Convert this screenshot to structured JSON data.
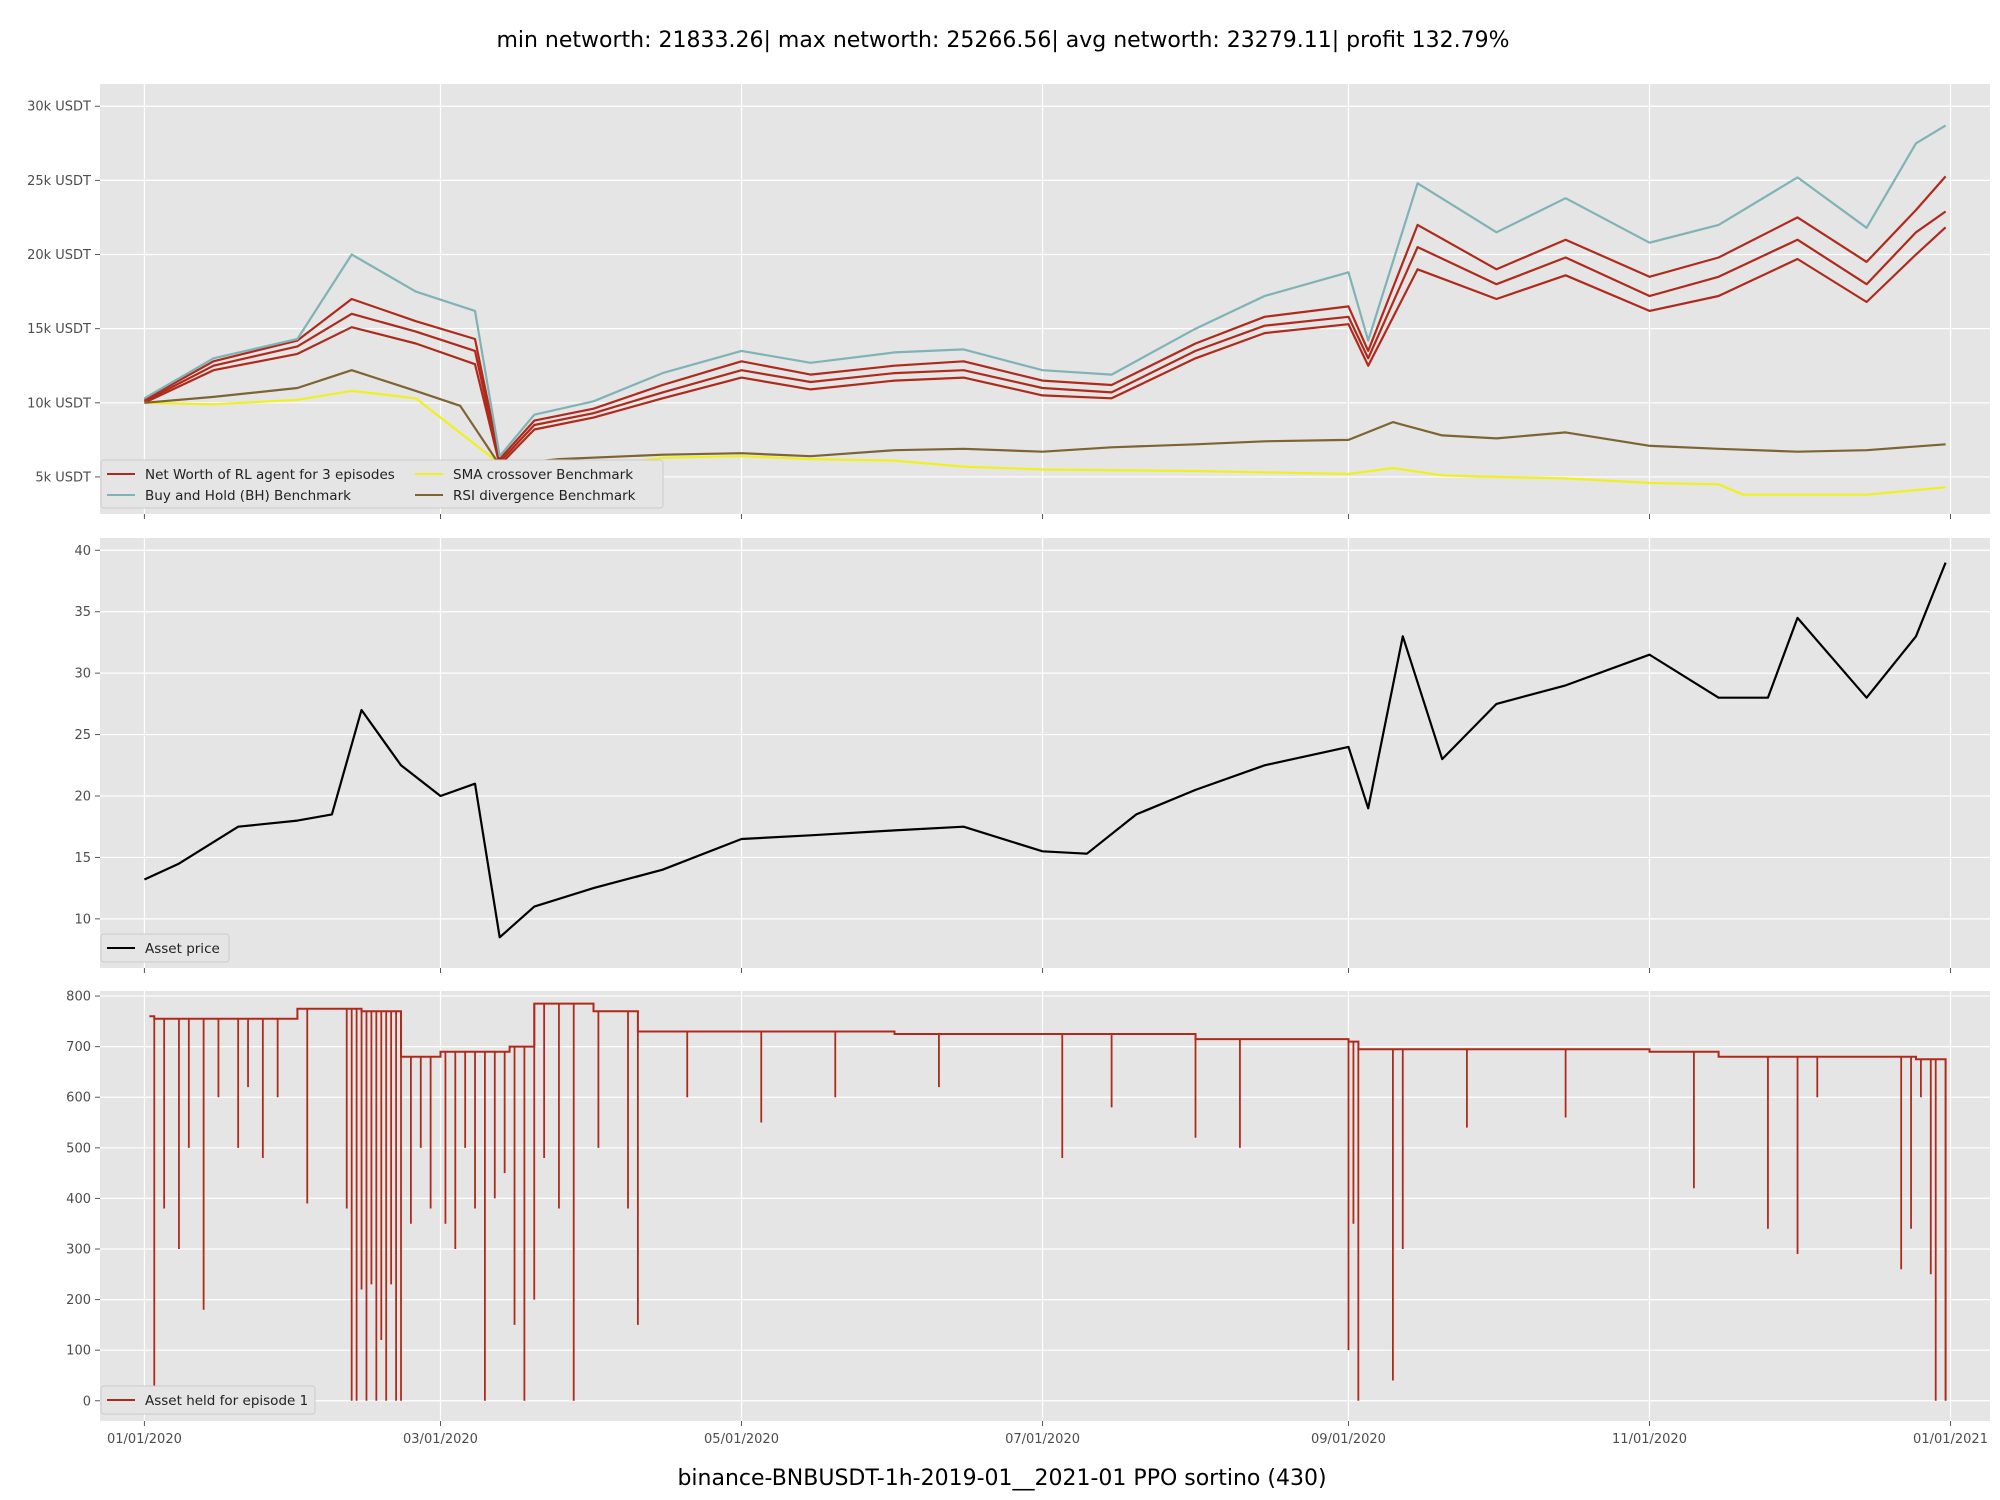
{
  "figure": {
    "suptitle": "min networth: 21833.26| max networth: 25266.56| avg networth: 23279.11| profit 132.79%",
    "xlabel": "binance-BNBUSDT-1h-2019-01__2021-01 PPO sortino  (430)"
  },
  "style": {
    "panel_background": "#e5e5e5",
    "grid_color": "#ffffff",
    "networth_color": "#b02a1c",
    "bh_color": "#7fb3b5",
    "sma_color": "#f0f01e",
    "rsi_color": "#7d6432",
    "price_color": "#000000",
    "held_color": "#b02a1c"
  },
  "chart_data": [
    {
      "type": "line",
      "x_ticks": [
        "01/01/2020",
        "03/01/2020",
        "05/01/2020",
        "07/01/2020",
        "09/01/2020",
        "11/01/2020",
        "01/01/2021"
      ],
      "ylim": [
        2500,
        31500
      ],
      "y_ticks": [
        5000,
        10000,
        15000,
        20000,
        25000,
        30000
      ],
      "y_tick_labels": [
        "5k USDT",
        "10k USDT",
        "15k USDT",
        "20k USDT",
        "25k USDT",
        "30k USDT"
      ],
      "legend": {
        "placement": "lower-left",
        "entries": [
          "Net Worth of RL agent for 3 episodes",
          "SMA crossover Benchmark",
          "Buy and Hold (BH) Benchmark",
          "RSI divergence Benchmark"
        ]
      },
      "series": [
        {
          "name": "Net Worth of RL agent for 3 episodes",
          "color_key": "networth_color",
          "x": [
            "2020-01-01",
            "2020-01-15",
            "2020-02-01",
            "2020-02-12",
            "2020-02-25",
            "2020-03-08",
            "2020-03-13",
            "2020-03-20",
            "2020-04-01",
            "2020-04-15",
            "2020-05-01",
            "2020-05-15",
            "2020-06-01",
            "2020-06-15",
            "2020-07-01",
            "2020-07-15",
            "2020-08-01",
            "2020-08-15",
            "2020-09-01",
            "2020-09-05",
            "2020-09-15",
            "2020-10-01",
            "2020-10-15",
            "2020-11-01",
            "2020-11-15",
            "2020-12-01",
            "2020-12-15",
            "2020-12-25",
            "2020-12-31"
          ],
          "values": [
            10200,
            12800,
            14200,
            17000,
            15500,
            14300,
            6200,
            8800,
            9600,
            11200,
            12800,
            11900,
            12500,
            12800,
            11500,
            11200,
            14000,
            15800,
            16500,
            13500,
            22000,
            19000,
            21000,
            18500,
            19800,
            22500,
            19500,
            23000,
            25266
          ]
        },
        {
          "name": "",
          "color_key": "networth_color",
          "x": [
            "2020-01-01",
            "2020-01-15",
            "2020-02-01",
            "2020-02-12",
            "2020-02-25",
            "2020-03-08",
            "2020-03-13",
            "2020-03-20",
            "2020-04-01",
            "2020-04-15",
            "2020-05-01",
            "2020-05-15",
            "2020-06-01",
            "2020-06-15",
            "2020-07-01",
            "2020-07-15",
            "2020-08-01",
            "2020-08-15",
            "2020-09-01",
            "2020-09-05",
            "2020-09-15",
            "2020-10-01",
            "2020-10-15",
            "2020-11-01",
            "2020-11-15",
            "2020-12-01",
            "2020-12-15",
            "2020-12-25",
            "2020-12-31"
          ],
          "values": [
            10100,
            12500,
            13800,
            16000,
            14800,
            13500,
            6000,
            8500,
            9300,
            10700,
            12200,
            11400,
            12000,
            12200,
            11000,
            10700,
            13500,
            15200,
            15800,
            13000,
            20500,
            18000,
            19800,
            17200,
            18500,
            21000,
            18000,
            21500,
            22900
          ]
        },
        {
          "name": "",
          "color_key": "networth_color",
          "x": [
            "2020-01-01",
            "2020-01-15",
            "2020-02-01",
            "2020-02-12",
            "2020-02-25",
            "2020-03-08",
            "2020-03-13",
            "2020-03-20",
            "2020-04-01",
            "2020-04-15",
            "2020-05-01",
            "2020-05-15",
            "2020-06-01",
            "2020-06-15",
            "2020-07-01",
            "2020-07-15",
            "2020-08-01",
            "2020-08-15",
            "2020-09-01",
            "2020-09-05",
            "2020-09-15",
            "2020-10-01",
            "2020-10-15",
            "2020-11-01",
            "2020-11-15",
            "2020-12-01",
            "2020-12-15",
            "2020-12-25",
            "2020-12-31"
          ],
          "values": [
            10000,
            12200,
            13300,
            15100,
            14000,
            12600,
            5800,
            8200,
            9000,
            10300,
            11700,
            10900,
            11500,
            11700,
            10500,
            10300,
            13000,
            14700,
            15300,
            12500,
            19000,
            17000,
            18600,
            16200,
            17200,
            19700,
            16800,
            20000,
            21833
          ]
        },
        {
          "name": "Buy and Hold (BH) Benchmark",
          "color_key": "bh_color",
          "x": [
            "2020-01-01",
            "2020-01-15",
            "2020-02-01",
            "2020-02-12",
            "2020-02-25",
            "2020-03-08",
            "2020-03-13",
            "2020-03-20",
            "2020-04-01",
            "2020-04-15",
            "2020-05-01",
            "2020-05-15",
            "2020-06-01",
            "2020-06-15",
            "2020-07-01",
            "2020-07-15",
            "2020-08-01",
            "2020-08-15",
            "2020-09-01",
            "2020-09-05",
            "2020-09-15",
            "2020-10-01",
            "2020-10-15",
            "2020-11-01",
            "2020-11-15",
            "2020-12-01",
            "2020-12-15",
            "2020-12-25",
            "2020-12-31"
          ],
          "values": [
            10300,
            13000,
            14300,
            20000,
            17500,
            16200,
            6400,
            9200,
            10100,
            12000,
            13500,
            12700,
            13400,
            13600,
            12200,
            11900,
            15000,
            17200,
            18800,
            14200,
            24800,
            21500,
            23800,
            20800,
            22000,
            25200,
            21800,
            27500,
            28700
          ]
        },
        {
          "name": "SMA crossover Benchmark",
          "color_key": "sma_color",
          "x": [
            "2020-01-01",
            "2020-01-15",
            "2020-02-01",
            "2020-02-12",
            "2020-02-25",
            "2020-03-01",
            "2020-03-13",
            "2020-03-20",
            "2020-04-01",
            "2020-04-15",
            "2020-05-01",
            "2020-05-15",
            "2020-06-01",
            "2020-06-15",
            "2020-07-01",
            "2020-08-01",
            "2020-09-01",
            "2020-09-10",
            "2020-09-20",
            "2020-10-01",
            "2020-10-15",
            "2020-11-01",
            "2020-11-15",
            "2020-11-20",
            "2020-12-01",
            "2020-12-15",
            "2020-12-31"
          ],
          "values": [
            10000,
            9900,
            10200,
            10800,
            10300,
            9000,
            5900,
            5800,
            5700,
            6300,
            6400,
            6200,
            6100,
            5700,
            5500,
            5400,
            5200,
            5600,
            5100,
            5000,
            4900,
            4600,
            4500,
            3800,
            3800,
            3800,
            4300
          ]
        },
        {
          "name": "RSI divergence Benchmark",
          "color_key": "rsi_color",
          "x": [
            "2020-01-01",
            "2020-01-15",
            "2020-02-01",
            "2020-02-12",
            "2020-02-25",
            "2020-03-05",
            "2020-03-13",
            "2020-03-25",
            "2020-04-15",
            "2020-05-01",
            "2020-05-15",
            "2020-06-01",
            "2020-06-15",
            "2020-07-01",
            "2020-07-15",
            "2020-08-01",
            "2020-08-15",
            "2020-09-01",
            "2020-09-10",
            "2020-09-20",
            "2020-10-01",
            "2020-10-15",
            "2020-11-01",
            "2020-11-15",
            "2020-12-01",
            "2020-12-15",
            "2020-12-31"
          ],
          "values": [
            10000,
            10400,
            11000,
            12200,
            10800,
            9800,
            5800,
            6200,
            6500,
            6600,
            6400,
            6800,
            6900,
            6700,
            7000,
            7200,
            7400,
            7500,
            8700,
            7800,
            7600,
            8000,
            7100,
            6900,
            6700,
            6800,
            7200
          ]
        }
      ]
    },
    {
      "type": "line",
      "x_ticks": [
        "01/01/2020",
        "03/01/2020",
        "05/01/2020",
        "07/01/2020",
        "09/01/2020",
        "11/01/2020",
        "01/01/2021"
      ],
      "ylim": [
        6,
        41
      ],
      "y_ticks": [
        10,
        15,
        20,
        25,
        30,
        35,
        40
      ],
      "y_tick_labels": [
        "10",
        "15",
        "20",
        "25",
        "30",
        "35",
        "40"
      ],
      "legend": {
        "placement": "lower-left",
        "entries": [
          "Asset price"
        ]
      },
      "series": [
        {
          "name": "Asset price",
          "color_key": "price_color",
          "x": [
            "2020-01-01",
            "2020-01-08",
            "2020-01-20",
            "2020-02-01",
            "2020-02-08",
            "2020-02-14",
            "2020-02-22",
            "2020-03-01",
            "2020-03-08",
            "2020-03-13",
            "2020-03-20",
            "2020-04-01",
            "2020-04-15",
            "2020-05-01",
            "2020-05-15",
            "2020-06-01",
            "2020-06-15",
            "2020-07-01",
            "2020-07-10",
            "2020-07-20",
            "2020-08-01",
            "2020-08-15",
            "2020-09-01",
            "2020-09-05",
            "2020-09-12",
            "2020-09-20",
            "2020-10-01",
            "2020-10-15",
            "2020-11-01",
            "2020-11-15",
            "2020-11-25",
            "2020-12-01",
            "2020-12-15",
            "2020-12-25",
            "2020-12-31"
          ],
          "values": [
            13.2,
            14.5,
            17.5,
            18.0,
            18.5,
            27.0,
            22.5,
            20.0,
            21.0,
            8.5,
            11.0,
            12.5,
            14.0,
            16.5,
            16.8,
            17.2,
            17.5,
            15.5,
            15.3,
            18.5,
            20.5,
            22.5,
            24.0,
            19.0,
            33.0,
            23.0,
            27.5,
            29.0,
            31.5,
            28.0,
            28.0,
            34.5,
            28.0,
            33.0,
            39.0
          ]
        }
      ]
    },
    {
      "type": "line",
      "x_ticks": [
        "01/01/2020",
        "03/01/2020",
        "05/01/2020",
        "07/01/2020",
        "09/01/2020",
        "11/01/2020",
        "01/01/2021"
      ],
      "ylim": [
        -40,
        810
      ],
      "y_ticks": [
        0,
        100,
        200,
        300,
        400,
        500,
        600,
        700,
        800
      ],
      "y_tick_labels": [
        "0",
        "100",
        "200",
        "300",
        "400",
        "500",
        "600",
        "700",
        "800"
      ],
      "legend": {
        "placement": "lower-left",
        "entries": [
          "Asset held for episode 1"
        ]
      },
      "series": [
        {
          "name": "Asset held for episode 1",
          "color_key": "held_color",
          "baseline_x": [
            "2020-01-02",
            "2020-01-03",
            "2020-01-15",
            "2020-02-01",
            "2020-02-14",
            "2020-02-22",
            "2020-03-01",
            "2020-03-15",
            "2020-03-20",
            "2020-04-01",
            "2020-04-10",
            "2020-05-01",
            "2020-06-01",
            "2020-07-01",
            "2020-08-01",
            "2020-09-01",
            "2020-09-03",
            "2020-09-15",
            "2020-10-01",
            "2020-11-01",
            "2020-11-15",
            "2020-12-01",
            "2020-12-25",
            "2020-12-31"
          ],
          "baseline_values": [
            760,
            755,
            755,
            775,
            770,
            680,
            690,
            700,
            785,
            770,
            730,
            730,
            725,
            725,
            715,
            710,
            695,
            695,
            695,
            690,
            680,
            680,
            675,
            0
          ],
          "dips_x": [
            "2020-01-03",
            "2020-01-05",
            "2020-01-08",
            "2020-01-10",
            "2020-01-13",
            "2020-01-16",
            "2020-01-20",
            "2020-01-22",
            "2020-01-25",
            "2020-01-28",
            "2020-02-03",
            "2020-02-11",
            "2020-02-12",
            "2020-02-13",
            "2020-02-14",
            "2020-02-15",
            "2020-02-16",
            "2020-02-17",
            "2020-02-18",
            "2020-02-19",
            "2020-02-20",
            "2020-02-21",
            "2020-02-22",
            "2020-02-24",
            "2020-02-26",
            "2020-02-28",
            "2020-03-02",
            "2020-03-04",
            "2020-03-06",
            "2020-03-08",
            "2020-03-10",
            "2020-03-12",
            "2020-03-14",
            "2020-03-16",
            "2020-03-18",
            "2020-03-20",
            "2020-03-22",
            "2020-03-25",
            "2020-03-28",
            "2020-04-02",
            "2020-04-08",
            "2020-04-10",
            "2020-04-20",
            "2020-05-05",
            "2020-05-20",
            "2020-06-10",
            "2020-07-05",
            "2020-07-15",
            "2020-08-01",
            "2020-08-10",
            "2020-09-01",
            "2020-09-02",
            "2020-09-03",
            "2020-09-10",
            "2020-09-12",
            "2020-09-25",
            "2020-10-15",
            "2020-11-10",
            "2020-11-25",
            "2020-12-01",
            "2020-12-05",
            "2020-12-22",
            "2020-12-24",
            "2020-12-26",
            "2020-12-28",
            "2020-12-29"
          ],
          "dips_values": [
            20,
            380,
            300,
            500,
            180,
            600,
            500,
            620,
            480,
            600,
            390,
            380,
            0,
            0,
            220,
            0,
            230,
            0,
            120,
            0,
            230,
            0,
            0,
            350,
            500,
            380,
            350,
            300,
            500,
            380,
            0,
            400,
            450,
            150,
            0,
            200,
            480,
            380,
            0,
            500,
            380,
            150,
            600,
            550,
            600,
            620,
            480,
            580,
            520,
            500,
            100,
            350,
            0,
            40,
            300,
            540,
            560,
            420,
            340,
            290,
            600,
            260,
            340,
            600,
            250,
            0
          ]
        }
      ]
    }
  ]
}
